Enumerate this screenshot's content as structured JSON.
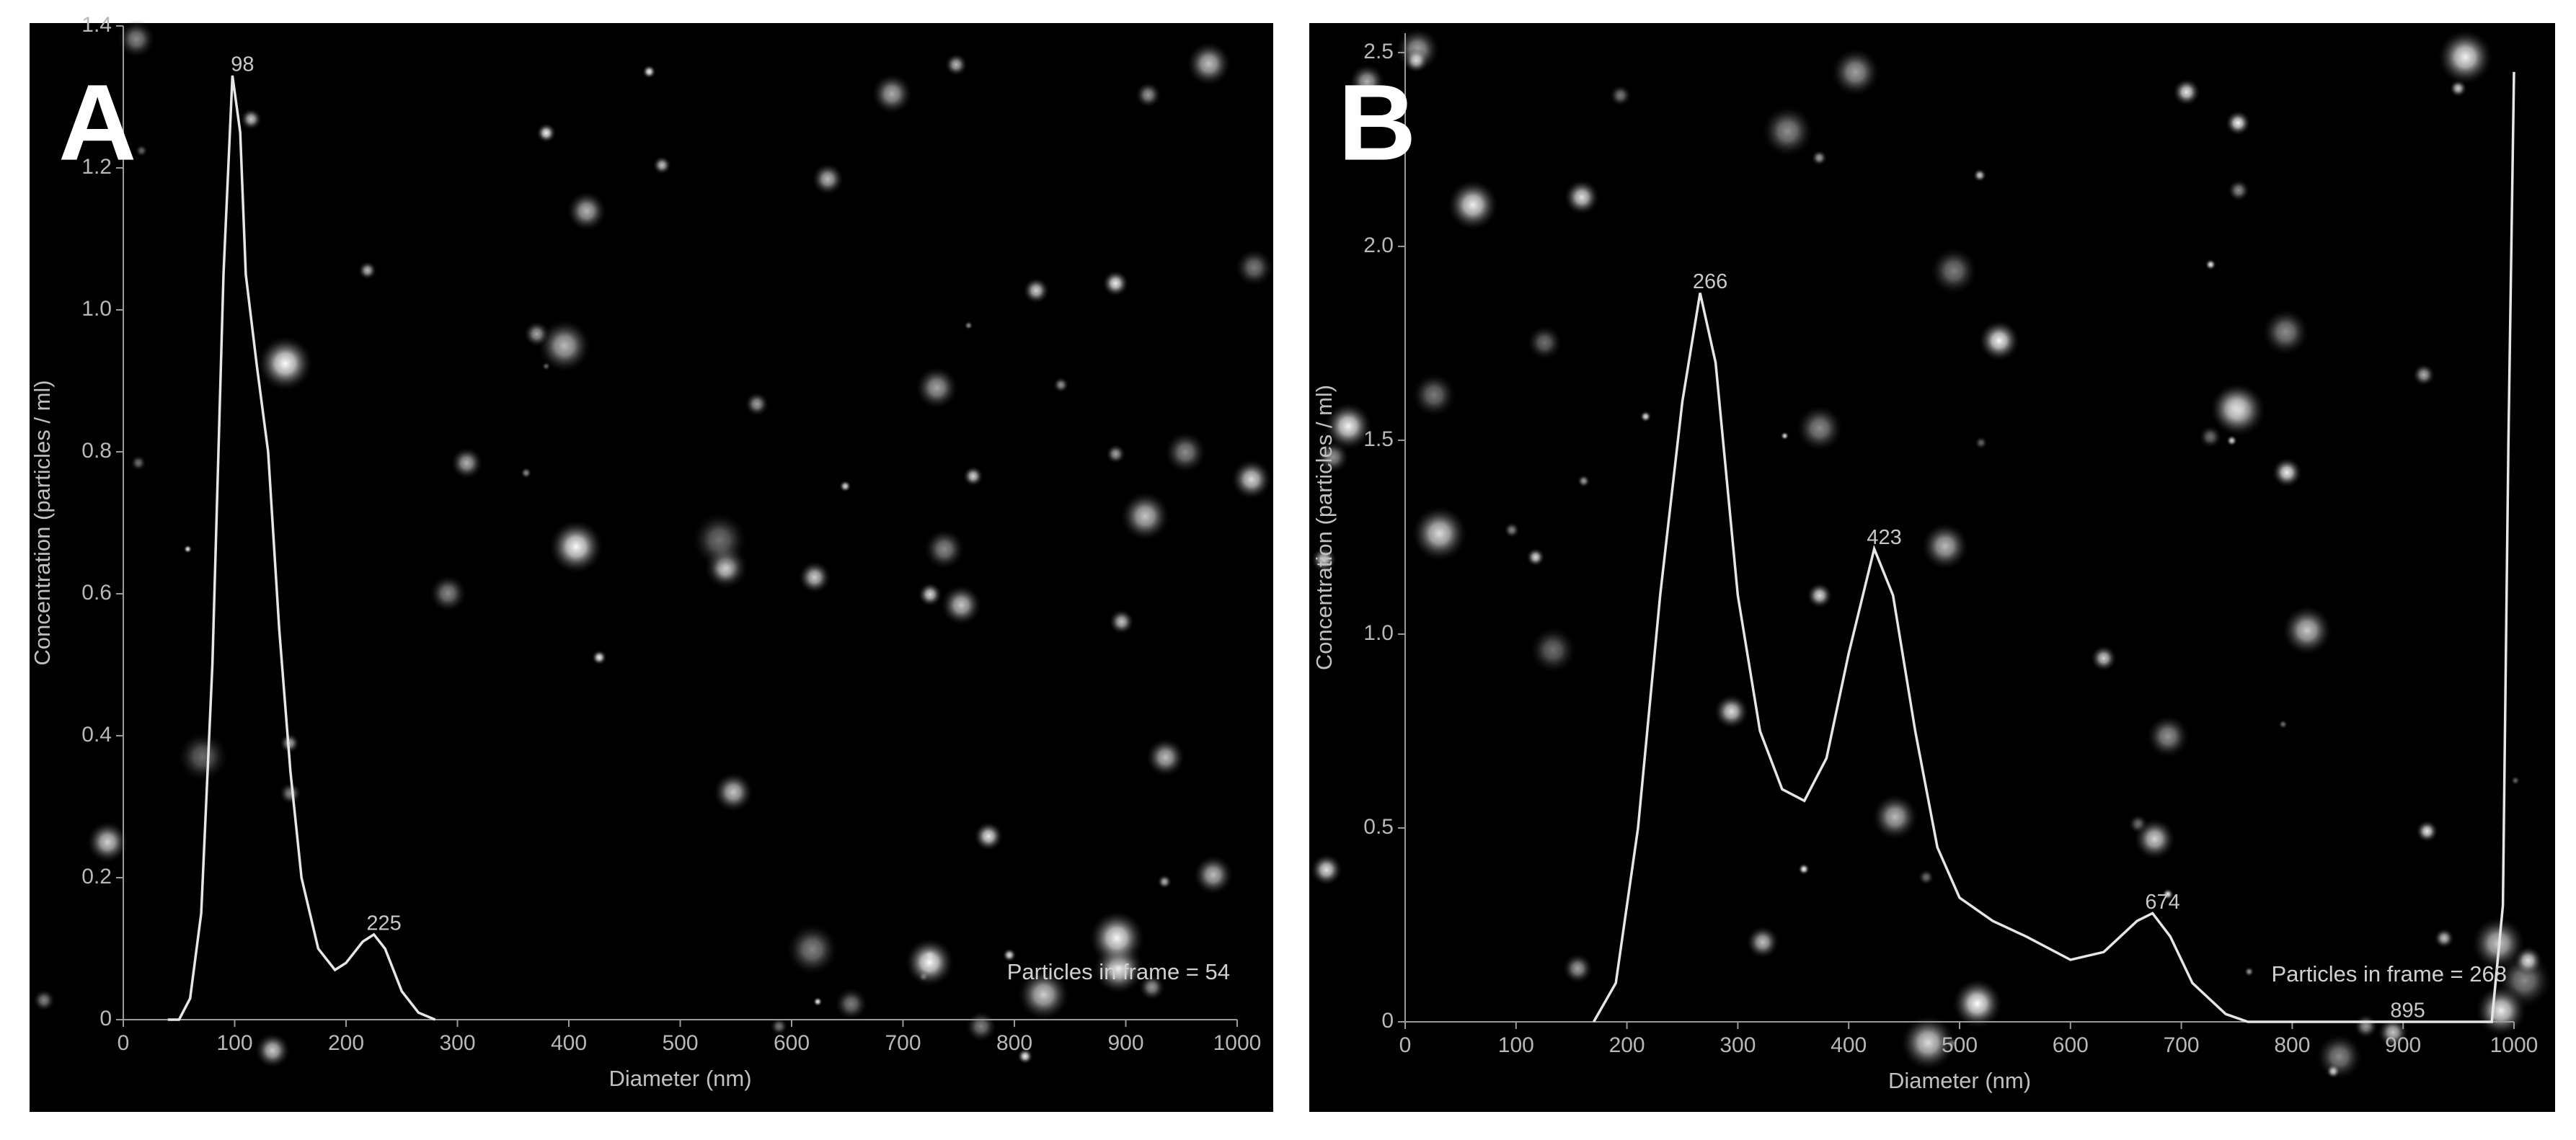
{
  "chart_data": [
    {
      "type": "line",
      "panel_label": "A",
      "ylabel": "Concentration (particles / ml)",
      "xlabel": "Diameter (nm)",
      "annotation": "Particles in frame = 54",
      "color": "#e6e6e6",
      "x": [
        40,
        50,
        60,
        70,
        80,
        90,
        98,
        105,
        110,
        120,
        130,
        140,
        150,
        160,
        175,
        190,
        200,
        215,
        225,
        235,
        250,
        265,
        280
      ],
      "values": [
        0,
        0,
        0.03,
        0.15,
        0.5,
        1.05,
        1.33,
        1.25,
        1.05,
        0.92,
        0.8,
        0.55,
        0.35,
        0.2,
        0.1,
        0.07,
        0.08,
        0.11,
        0.12,
        0.1,
        0.04,
        0.01,
        0
      ],
      "peaks": [
        98,
        225
      ],
      "xlim": [
        0,
        1000
      ],
      "xticks": [
        0,
        100,
        200,
        300,
        400,
        500,
        600,
        700,
        800,
        900,
        1000
      ],
      "ylim": [
        0,
        1.4
      ],
      "yticks": [
        0,
        0.2,
        0.4,
        0.6,
        0.8,
        {
          "value": 1,
          "label": "1.0"
        },
        1.2,
        1.4
      ]
    },
    {
      "type": "line",
      "panel_label": "B",
      "ylabel": "Concentration (particles / ml)",
      "xlabel": "Diameter (nm)",
      "annotation": "Particles in frame = 268",
      "color": "#e6e6e6",
      "x": [
        170,
        190,
        210,
        230,
        250,
        266,
        280,
        300,
        320,
        340,
        360,
        380,
        400,
        423,
        440,
        460,
        480,
        500,
        530,
        560,
        600,
        630,
        660,
        674,
        690,
        710,
        740,
        760,
        895,
        980,
        990,
        995,
        1000
      ],
      "values": [
        0,
        0.1,
        0.5,
        1.1,
        1.6,
        1.88,
        1.7,
        1.1,
        0.75,
        0.6,
        0.57,
        0.68,
        0.95,
        1.22,
        1.1,
        0.75,
        0.45,
        0.32,
        0.26,
        0.22,
        0.16,
        0.18,
        0.26,
        0.28,
        0.22,
        0.1,
        0.02,
        0,
        0,
        0,
        0.3,
        1.5,
        2.45
      ],
      "peaks": [
        266,
        423,
        674,
        895
      ],
      "xlim": [
        0,
        1000
      ],
      "xticks": [
        0,
        100,
        200,
        300,
        400,
        500,
        600,
        700,
        800,
        900,
        1000
      ],
      "ylim": [
        0,
        2.55
      ],
      "yticks": [
        0,
        0.5,
        {
          "value": 1,
          "label": "1.0"
        },
        1.5,
        {
          "value": 2,
          "label": "2.0"
        },
        2.5
      ]
    }
  ]
}
